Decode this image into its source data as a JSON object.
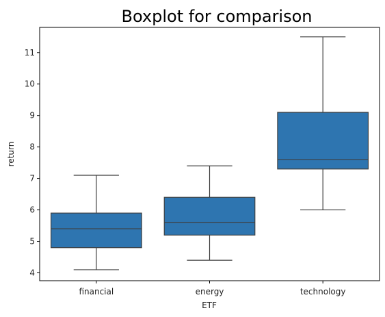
{
  "chart_data": {
    "type": "box",
    "title": "Boxplot for comparison",
    "xlabel": "ETF",
    "ylabel": "return",
    "ylim": [
      3.75,
      11.8
    ],
    "yticks": [
      4,
      5,
      6,
      7,
      8,
      9,
      10,
      11
    ],
    "grid": false,
    "categories": [
      "financial",
      "energy",
      "technology"
    ],
    "boxes": [
      {
        "category": "financial",
        "min": 4.1,
        "q1": 4.8,
        "median": 5.4,
        "q3": 5.9,
        "max": 7.1
      },
      {
        "category": "energy",
        "min": 4.4,
        "q1": 5.2,
        "median": 5.6,
        "q3": 6.4,
        "max": 7.4
      },
      {
        "category": "technology",
        "min": 6.0,
        "q1": 7.3,
        "median": 7.6,
        "q3": 9.1,
        "max": 11.5
      }
    ],
    "box_color": "#2e75b0",
    "line_color": "#3f3f3f"
  }
}
